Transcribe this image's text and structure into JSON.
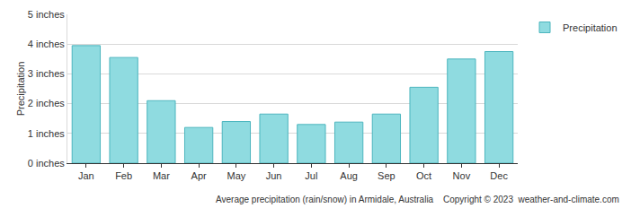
{
  "chart_data": {
    "type": "bar",
    "title": "Average precipitation (rain/snow) in Armidale, Australia",
    "annotations": [
      "Copyright © 2023  weather-and-climate.com"
    ],
    "y_label": "Precipitation",
    "categories": [
      "Jan",
      "Feb",
      "Mar",
      "Apr",
      "May",
      "Jun",
      "Jul",
      "Aug",
      "Sep",
      "Oct",
      "Nov",
      "Dec"
    ],
    "series": [
      {
        "name": "Precipitation",
        "color": "#8fdbe0",
        "values": [
          3.95,
          3.55,
          2.1,
          1.2,
          1.4,
          1.65,
          1.3,
          1.38,
          1.65,
          2.55,
          3.5,
          3.75
        ]
      }
    ],
    "ylim": [
      0,
      5
    ],
    "yticks": [
      {
        "value": 0,
        "label": "0 inches"
      },
      {
        "value": 1,
        "label": "1 inches"
      },
      {
        "value": 2,
        "label": "2 inches"
      },
      {
        "value": 3,
        "label": "3 inches"
      },
      {
        "value": 4,
        "label": "4 inches"
      },
      {
        "value": 5,
        "label": "5 inches"
      }
    ],
    "grid": true,
    "legend": "right"
  }
}
